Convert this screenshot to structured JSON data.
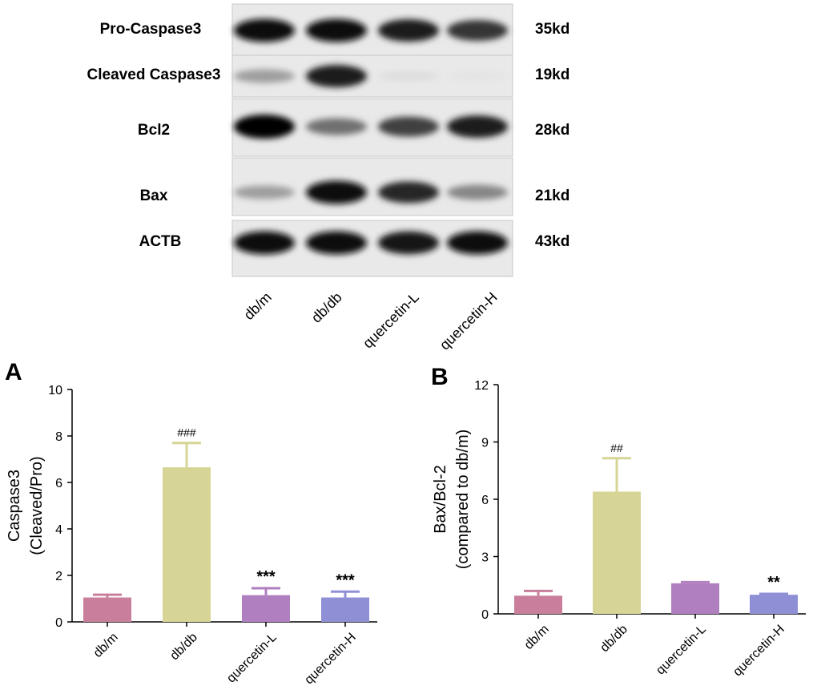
{
  "blot": {
    "groups": [
      "db/m",
      "db/db",
      "quercetin-L",
      "quercetin-H"
    ],
    "rows": [
      {
        "protein": "Pro-Caspase3",
        "size": "35kd",
        "intensity": [
          0.95,
          0.95,
          0.9,
          0.8
        ]
      },
      {
        "protein": "Cleaved Caspase3",
        "size": "19kd",
        "intensity": [
          0.35,
          0.9,
          0.08,
          0.05
        ]
      },
      {
        "protein": "Bcl2",
        "size": "28kd",
        "intensity": [
          1.0,
          0.55,
          0.75,
          0.9
        ]
      },
      {
        "protein": "Bax",
        "size": "21kd",
        "intensity": [
          0.35,
          0.95,
          0.85,
          0.45
        ]
      },
      {
        "protein": "ACTB",
        "size": "43kd",
        "intensity": [
          0.95,
          0.95,
          0.92,
          0.95
        ]
      }
    ]
  },
  "chart_data": [
    {
      "type": "bar",
      "panel_label": "A",
      "categories": [
        "db/m",
        "db/db",
        "quercetin-L",
        "quercetin-H"
      ],
      "values": [
        1.05,
        6.65,
        1.15,
        1.05
      ],
      "errors": [
        0.12,
        1.05,
        0.3,
        0.25
      ],
      "annotations": [
        "",
        "###",
        "***",
        "***"
      ],
      "colors": [
        "#c97f9c",
        "#d6d596",
        "#b07fc0",
        "#8f8fd6"
      ],
      "ylabel_line1": "Caspase3",
      "ylabel_line2": "(Cleaved/Pro)",
      "ylim": [
        0,
        10
      ],
      "yticks": [
        0,
        2,
        4,
        6,
        8,
        10
      ]
    },
    {
      "type": "bar",
      "panel_label": "B",
      "categories": [
        "db/m",
        "db/db",
        "quercetin-L",
        "quercetin-H"
      ],
      "values": [
        0.95,
        6.4,
        1.6,
        1.0
      ],
      "errors": [
        0.25,
        1.75,
        0.06,
        0.05
      ],
      "annotations": [
        "",
        "##",
        "",
        "**"
      ],
      "colors": [
        "#c97f9c",
        "#d6d596",
        "#b07fc0",
        "#8f8fd6"
      ],
      "ylabel_line1": "Bax/Bcl-2",
      "ylabel_line2": "(compared to db/m)",
      "ylim": [
        0,
        12
      ],
      "yticks": [
        0,
        3,
        6,
        9,
        12
      ]
    }
  ]
}
